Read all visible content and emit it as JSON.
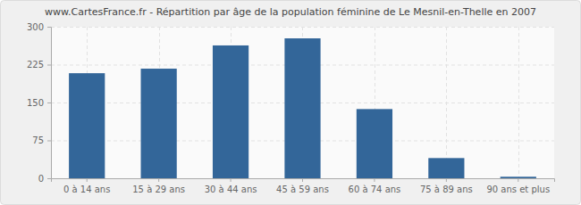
{
  "chart_data": {
    "type": "bar",
    "title": "www.CartesFrance.fr - Répartition par âge de la population féminine de Le Mesnil-en-Thelle en 2007",
    "categories": [
      "0 à 14 ans",
      "15 à 29 ans",
      "30 à 44 ans",
      "45 à 59 ans",
      "60 à 74 ans",
      "75 à 89 ans",
      "90 ans et plus"
    ],
    "values": [
      208,
      217,
      263,
      277,
      137,
      40,
      3
    ],
    "color": "#336699",
    "ylim": [
      0,
      300
    ],
    "yticks": [
      0,
      75,
      150,
      225,
      300
    ],
    "grid": true
  }
}
